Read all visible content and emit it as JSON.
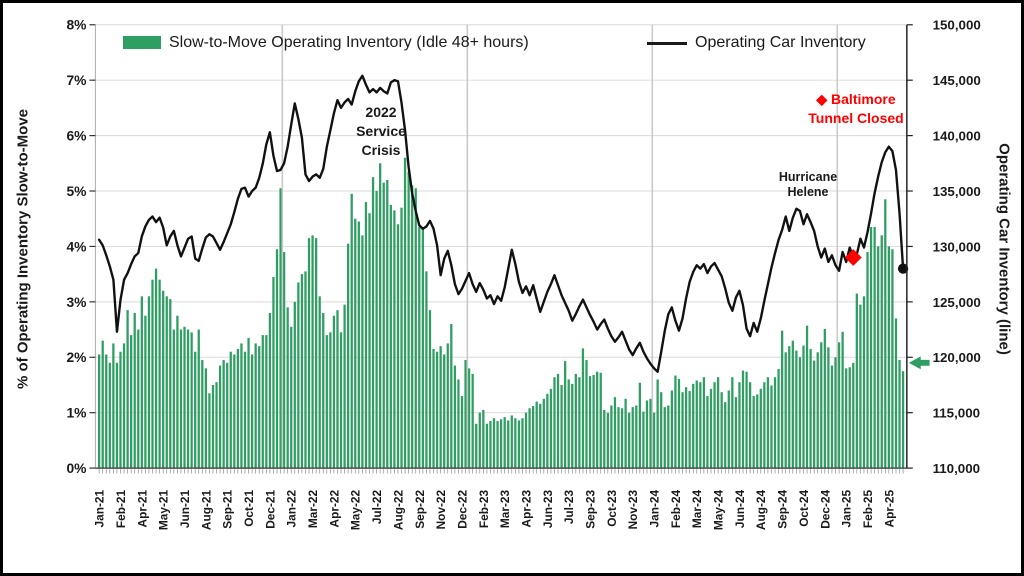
{
  "chart_data": {
    "type": "combo",
    "title": "",
    "frequency": "weekly",
    "x_tick_label_every_n_points": 6,
    "x_tick_labels": [
      "Jan-21",
      "Feb-21",
      "Apr-21",
      "May-21",
      "Jun-21",
      "Aug-21",
      "Sep-21",
      "Oct-21",
      "Dec-21",
      "Jan-22",
      "Mar-22",
      "Apr-22",
      "May-22",
      "Jul-22",
      "Aug-22",
      "Sep-22",
      "Nov-22",
      "Dec-22",
      "Feb-23",
      "Mar-23",
      "Apr-23",
      "Jun-23",
      "Jul-23",
      "Sep-23",
      "Oct-23",
      "Nov-23",
      "Jan-24",
      "Feb-24",
      "Mar-24",
      "May-24",
      "Jun-24",
      "Aug-24",
      "Sep-24",
      "Oct-24",
      "Dec-24",
      "Jan-25",
      "Feb-25",
      "Apr-25"
    ],
    "year_separator_indices": [
      52,
      104,
      156,
      208
    ],
    "left_axis": {
      "title": "% of Operating Inventory Slow-to-Move",
      "min": 0,
      "max": 8,
      "step": 1,
      "unit": "%",
      "tick_labels": [
        "0%",
        "1%",
        "2%",
        "3%",
        "4%",
        "5%",
        "6%",
        "7%",
        "8%"
      ]
    },
    "right_axis": {
      "title": "Operating Car Inventory (line)",
      "min": 110000,
      "max": 150000,
      "step": 5000,
      "tick_labels": [
        "110,000",
        "115,000",
        "120,000",
        "125,000",
        "130,000",
        "135,000",
        "140,000",
        "145,000",
        "150,000"
      ]
    },
    "grid": {
      "horizontal": true,
      "color": "#d9d9d9",
      "year_line_color": "#c9c9c9"
    },
    "series": [
      {
        "name": "Slow-to-Move Operating Inventory (Idle 48+ hours)",
        "type": "bar",
        "axis": "left",
        "color": "#2f9e63",
        "values": [
          2.05,
          2.3,
          2.05,
          1.9,
          2.25,
          1.9,
          2.1,
          2.25,
          2.85,
          2.4,
          2.8,
          2.5,
          3.1,
          2.75,
          3.1,
          3.4,
          3.6,
          3.4,
          3.2,
          3.1,
          3.05,
          2.5,
          2.75,
          2.5,
          2.55,
          2.5,
          2.45,
          2.1,
          2.5,
          1.95,
          1.8,
          1.35,
          1.5,
          1.55,
          1.85,
          1.95,
          1.9,
          2.1,
          2.05,
          2.15,
          2.25,
          2.1,
          2.35,
          2.05,
          2.25,
          2.2,
          2.4,
          2.4,
          2.8,
          3.45,
          3.95,
          5.05,
          3.9,
          2.9,
          2.55,
          3.0,
          3.35,
          3.5,
          3.55,
          4.15,
          4.2,
          4.15,
          3.1,
          2.8,
          2.4,
          2.45,
          2.75,
          2.85,
          2.45,
          2.95,
          4.05,
          4.95,
          4.5,
          4.45,
          4.2,
          4.8,
          4.6,
          5.25,
          5.0,
          5.5,
          5.15,
          5.2,
          4.75,
          4.65,
          4.4,
          4.7,
          5.6,
          5.35,
          5.1,
          5.05,
          4.35,
          4.35,
          3.55,
          2.85,
          2.15,
          2.1,
          2.2,
          2.05,
          2.25,
          2.6,
          1.85,
          1.6,
          1.3,
          1.95,
          1.8,
          1.7,
          0.8,
          1.0,
          1.05,
          0.8,
          0.85,
          0.9,
          0.85,
          0.88,
          0.92,
          0.86,
          0.95,
          0.9,
          0.86,
          0.9,
          1.0,
          1.08,
          1.12,
          1.2,
          1.16,
          1.25,
          1.34,
          1.43,
          1.64,
          1.7,
          1.5,
          1.93,
          1.6,
          1.52,
          1.7,
          1.64,
          2.16,
          1.95,
          1.66,
          1.68,
          1.74,
          1.72,
          1.05,
          1.0,
          1.13,
          1.28,
          1.1,
          1.08,
          1.25,
          1.0,
          1.1,
          1.13,
          1.54,
          1.02,
          1.22,
          1.25,
          1.0,
          1.6,
          1.37,
          1.1,
          1.13,
          1.4,
          1.67,
          1.61,
          1.37,
          1.46,
          1.39,
          1.52,
          1.58,
          1.55,
          1.64,
          1.3,
          1.43,
          1.55,
          1.64,
          1.37,
          1.19,
          1.4,
          1.64,
          1.28,
          1.55,
          1.76,
          1.74,
          1.55,
          1.3,
          1.33,
          1.43,
          1.55,
          1.64,
          1.49,
          1.64,
          1.79,
          2.48,
          2.09,
          2.2,
          2.3,
          2.12,
          2.0,
          2.21,
          2.57,
          2.15,
          1.94,
          2.09,
          2.27,
          2.51,
          2.18,
          1.85,
          2.0,
          2.27,
          2.46,
          1.8,
          1.82,
          1.9,
          3.15,
          2.95,
          3.1,
          3.9,
          4.35,
          4.35,
          4.0,
          4.2,
          4.85,
          4.0,
          3.95,
          2.7,
          1.95,
          1.75
        ]
      },
      {
        "name": "Operating Car Inventory",
        "type": "line",
        "axis": "right",
        "color": "#111111",
        "values": [
          130600,
          130100,
          129200,
          128200,
          127000,
          122300,
          125200,
          127000,
          127600,
          128400,
          129100,
          129400,
          130900,
          131800,
          132400,
          132700,
          132200,
          132600,
          131700,
          130100,
          130900,
          131400,
          130100,
          129100,
          129900,
          130700,
          130900,
          128900,
          128700,
          129800,
          130800,
          131100,
          130900,
          130300,
          129700,
          130400,
          131200,
          132000,
          133100,
          134300,
          135200,
          135300,
          134500,
          135000,
          135300,
          136200,
          137500,
          139200,
          140300,
          138200,
          136800,
          136900,
          137500,
          139000,
          141000,
          142900,
          141500,
          139800,
          136500,
          135900,
          136300,
          136500,
          136200,
          137000,
          139000,
          140500,
          142000,
          143200,
          142500,
          143000,
          143300,
          142800,
          144000,
          144900,
          145400,
          144600,
          143900,
          144200,
          143900,
          144300,
          144000,
          143800,
          144800,
          145000,
          144900,
          143000,
          140500,
          137200,
          134800,
          133200,
          131900,
          131600,
          131800,
          132300,
          131600,
          130100,
          127400,
          128900,
          129600,
          128300,
          126600,
          125700,
          126200,
          126900,
          127600,
          126600,
          125900,
          126700,
          126100,
          125300,
          125600,
          124800,
          125500,
          125100,
          126300,
          128000,
          129700,
          128400,
          126800,
          125800,
          126400,
          125600,
          126500,
          125300,
          124100,
          125000,
          125900,
          126600,
          127400,
          126500,
          125600,
          124900,
          124200,
          123300,
          123900,
          124600,
          125200,
          124500,
          123800,
          123200,
          122500,
          123000,
          123400,
          122600,
          121900,
          121400,
          121800,
          122300,
          121500,
          120700,
          120200,
          120800,
          121300,
          120500,
          119900,
          119400,
          119000,
          118700,
          120500,
          122400,
          123900,
          124500,
          123300,
          122400,
          123500,
          125300,
          126800,
          127700,
          128300,
          128000,
          128400,
          127600,
          128200,
          128500,
          127900,
          127300,
          126200,
          124900,
          124200,
          125400,
          126000,
          124700,
          122600,
          121900,
          123100,
          122300,
          123500,
          125100,
          126600,
          128100,
          129400,
          130600,
          131500,
          132700,
          131400,
          132600,
          133400,
          133200,
          132000,
          132900,
          132200,
          131400,
          130000,
          129000,
          129800,
          128600,
          129200,
          128300,
          127800,
          129500,
          128600,
          129900,
          129000,
          129300,
          130700,
          129900,
          131300,
          133000,
          134800,
          136300,
          137600,
          138500,
          139000,
          138600,
          136900,
          133000,
          128000
        ]
      }
    ],
    "legend": {
      "bar_label": "Slow-to-Move Operating Inventory (Idle 48+ hours)",
      "line_label": "Operating Car Inventory"
    },
    "annotations": {
      "service_crisis": {
        "text": "2022\nService\nCrisis",
        "color": "#1a1a1a"
      },
      "hurricane_helene": {
        "text": "Hurricane\nHelene",
        "color": "#1a1a1a"
      },
      "baltimore": {
        "text": "◆ Baltimore\nTunnel Closed",
        "color": "#ff0000"
      },
      "baltimore_marker": {
        "shape": "diamond",
        "color": "#ff0000",
        "week_index": 212,
        "line_value": 129000
      },
      "line_end_dot": {
        "week_index": 226,
        "line_value": 128000,
        "color": "#111111"
      },
      "latest_bar_arrow": {
        "shape": "left-arrow",
        "color": "#2f9e63",
        "axis": "right",
        "value": 119500
      }
    }
  }
}
